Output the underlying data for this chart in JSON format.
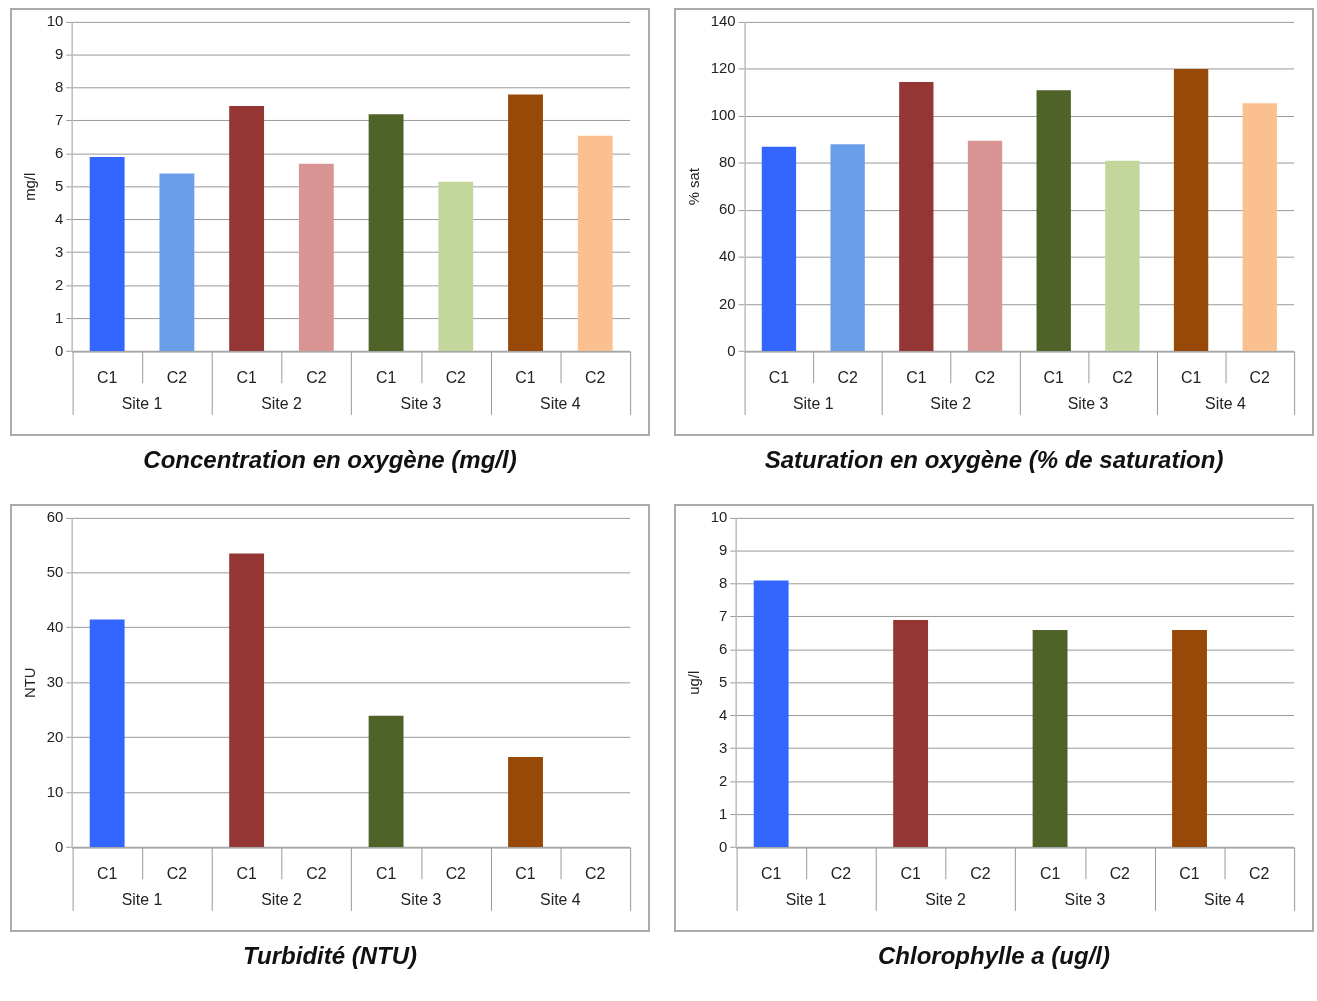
{
  "chart_data": [
    {
      "type": "bar",
      "title": "Concentration en oxygène (mg/l)",
      "ylabel": "mg/l",
      "categories": [
        "C1",
        "C2",
        "C1",
        "C2",
        "C1",
        "C2",
        "C1",
        "C2"
      ],
      "values": [
        5.9,
        5.4,
        7.45,
        5.7,
        7.2,
        5.15,
        7.8,
        6.55
      ],
      "colors": [
        "#3366ff",
        "#6a9ee8",
        "#943634",
        "#d99594",
        "#4f6228",
        "#c3d69b",
        "#984807",
        "#fac08f"
      ],
      "ylim": [
        0,
        10
      ],
      "yticks": [
        0,
        1,
        2,
        3,
        4,
        5,
        6,
        7,
        8,
        9,
        10
      ],
      "grid": "y",
      "annotations": [
        "Site 1",
        "Site 2",
        "Site 3",
        "Site 4"
      ]
    },
    {
      "type": "bar",
      "title": "Saturation en oxygène (% de saturation)",
      "ylabel": "% sat",
      "categories": [
        "C1",
        "C2",
        "C1",
        "C2",
        "C1",
        "C2",
        "C1",
        "C2"
      ],
      "values": [
        87,
        88,
        114.5,
        89.5,
        111,
        81,
        120,
        105.5
      ],
      "colors": [
        "#3366ff",
        "#6a9ee8",
        "#943634",
        "#d99594",
        "#4f6228",
        "#c3d69b",
        "#984807",
        "#fac08f"
      ],
      "ylim": [
        0,
        140
      ],
      "yticks": [
        0,
        20,
        40,
        60,
        80,
        100,
        120,
        140
      ],
      "grid": "y",
      "annotations": [
        "Site 1",
        "Site 2",
        "Site 3",
        "Site 4"
      ]
    },
    {
      "type": "bar",
      "title": "Turbidité (NTU)",
      "ylabel": "NTU",
      "categories": [
        "C1",
        "C2",
        "C1",
        "C2",
        "C1",
        "C2",
        "C1",
        "C2"
      ],
      "values": [
        41.5,
        null,
        53.5,
        null,
        24,
        null,
        16.5,
        null
      ],
      "colors": [
        "#3366ff",
        "#6a9ee8",
        "#943634",
        "#d99594",
        "#4f6228",
        "#c3d69b",
        "#984807",
        "#fac08f"
      ],
      "ylim": [
        0,
        60
      ],
      "yticks": [
        0,
        10,
        20,
        30,
        40,
        50,
        60
      ],
      "grid": "y",
      "annotations": [
        "Site 1",
        "Site 2",
        "Site 3",
        "Site 4"
      ]
    },
    {
      "type": "bar",
      "title": "Chlorophylle a (ug/l)",
      "ylabel": "ug/l",
      "categories": [
        "C1",
        "C2",
        "C1",
        "C2",
        "C1",
        "C2",
        "C1",
        "C2"
      ],
      "values": [
        8.1,
        null,
        6.9,
        null,
        6.6,
        null,
        6.6,
        null
      ],
      "colors": [
        "#3366ff",
        "#6a9ee8",
        "#943634",
        "#d99594",
        "#4f6228",
        "#c3d69b",
        "#984807",
        "#fac08f"
      ],
      "ylim": [
        0,
        10
      ],
      "yticks": [
        0,
        1,
        2,
        3,
        4,
        5,
        6,
        7,
        8,
        9,
        10
      ],
      "grid": "y",
      "annotations": [
        "Site 1",
        "Site 2",
        "Site 3",
        "Site 4"
      ]
    }
  ]
}
